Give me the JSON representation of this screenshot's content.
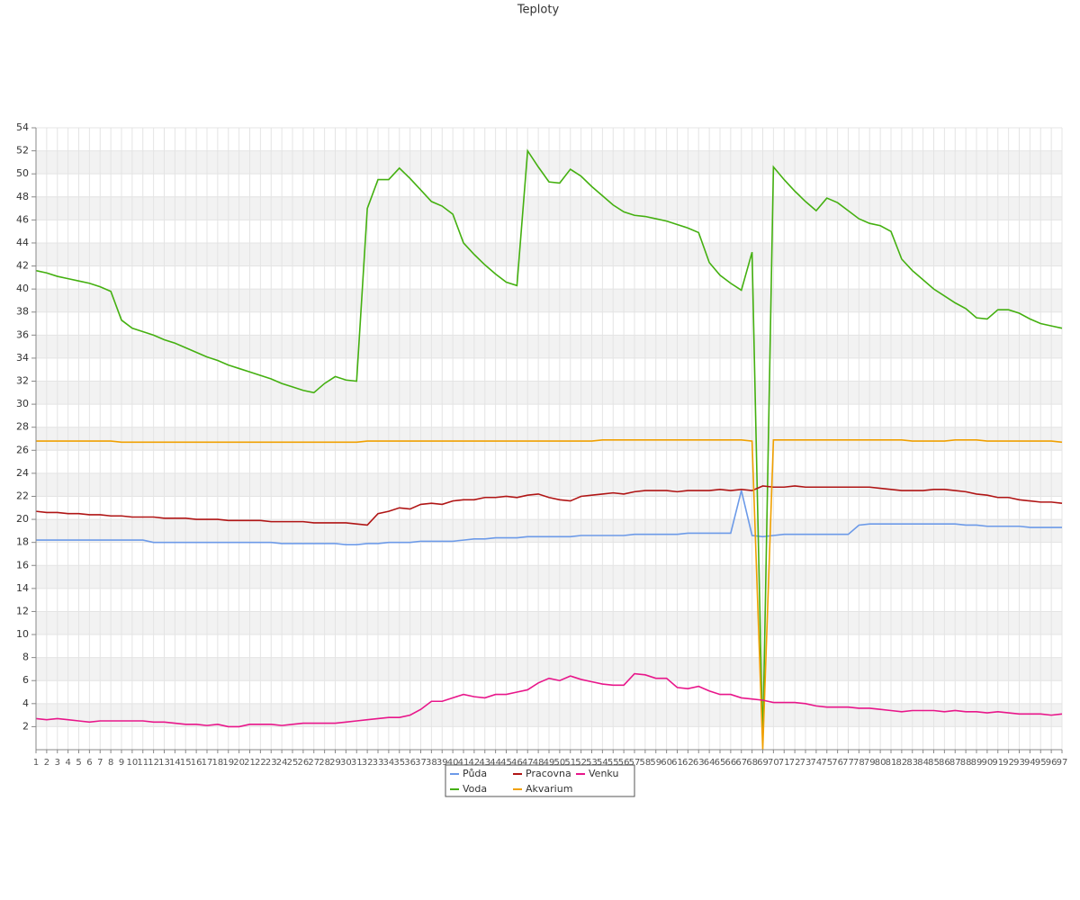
{
  "chart_data": {
    "type": "line",
    "title": "Teploty",
    "x": [
      1,
      2,
      3,
      4,
      5,
      6,
      7,
      8,
      9,
      10,
      11,
      12,
      13,
      14,
      15,
      16,
      17,
      18,
      19,
      20,
      21,
      22,
      23,
      24,
      25,
      26,
      27,
      28,
      29,
      30,
      31,
      32,
      33,
      34,
      35,
      36,
      37,
      38,
      39,
      40,
      41,
      42,
      43,
      44,
      45,
      46,
      47,
      48,
      49,
      50,
      51,
      52,
      53,
      54,
      55,
      56,
      57,
      58,
      59,
      60,
      61,
      62,
      63,
      64,
      65,
      66,
      67,
      68,
      69,
      70,
      71,
      72,
      73,
      74,
      75,
      76,
      77,
      78,
      79,
      80,
      81,
      82,
      83,
      84,
      85,
      86,
      87,
      88,
      89,
      90,
      91,
      92,
      93,
      94,
      95,
      96,
      97
    ],
    "xlim": [
      1,
      97
    ],
    "ylim": [
      0,
      54
    ],
    "yticks": [
      2,
      4,
      6,
      8,
      10,
      12,
      14,
      16,
      18,
      20,
      22,
      24,
      26,
      28,
      30,
      32,
      34,
      36,
      38,
      40,
      42,
      44,
      46,
      48,
      50,
      52,
      54
    ],
    "grid": true,
    "legend": "bottom",
    "series": [
      {
        "name": "Půda",
        "color": "#6c9ae8",
        "values": [
          18.2,
          18.2,
          18.2,
          18.2,
          18.2,
          18.2,
          18.2,
          18.2,
          18.2,
          18.2,
          18.2,
          18.0,
          18.0,
          18.0,
          18.0,
          18.0,
          18.0,
          18.0,
          18.0,
          18.0,
          18.0,
          18.0,
          18.0,
          17.9,
          17.9,
          17.9,
          17.9,
          17.9,
          17.9,
          17.8,
          17.8,
          17.9,
          17.9,
          18.0,
          18.0,
          18.0,
          18.1,
          18.1,
          18.1,
          18.1,
          18.2,
          18.3,
          18.3,
          18.4,
          18.4,
          18.4,
          18.5,
          18.5,
          18.5,
          18.5,
          18.5,
          18.6,
          18.6,
          18.6,
          18.6,
          18.6,
          18.7,
          18.7,
          18.7,
          18.7,
          18.7,
          18.8,
          18.8,
          18.8,
          18.8,
          18.8,
          22.5,
          18.6,
          18.5,
          18.6,
          18.7,
          18.7,
          18.7,
          18.7,
          18.7,
          18.7,
          18.7,
          19.5,
          19.6,
          19.6,
          19.6,
          19.6,
          19.6,
          19.6,
          19.6,
          19.6,
          19.6,
          19.5,
          19.5,
          19.4,
          19.4,
          19.4,
          19.4,
          19.3,
          19.3,
          19.3,
          19.3
        ]
      },
      {
        "name": "Voda",
        "color": "#44b010",
        "values": [
          41.6,
          41.4,
          41.1,
          40.9,
          40.7,
          40.5,
          40.2,
          39.8,
          37.3,
          36.6,
          36.3,
          36.0,
          35.6,
          35.3,
          34.9,
          34.5,
          34.1,
          33.8,
          33.4,
          33.1,
          32.8,
          32.5,
          32.2,
          31.8,
          31.5,
          31.2,
          31.0,
          31.8,
          32.4,
          32.1,
          32.0,
          47.0,
          49.5,
          49.5,
          50.5,
          49.6,
          48.6,
          47.6,
          47.2,
          46.5,
          44.0,
          43.0,
          42.1,
          41.3,
          40.6,
          40.3,
          52.0,
          50.6,
          49.3,
          49.2,
          50.4,
          49.8,
          48.9,
          48.1,
          47.3,
          46.7,
          46.4,
          46.3,
          46.1,
          45.9,
          45.6,
          45.3,
          44.9,
          42.3,
          41.2,
          40.5,
          39.9,
          43.2,
          0.5,
          50.6,
          49.5,
          48.5,
          47.6,
          46.8,
          47.9,
          47.5,
          46.8,
          46.1,
          45.7,
          45.5,
          45.0,
          42.6,
          41.6,
          40.8,
          40.0,
          39.4,
          38.8,
          38.3,
          37.5,
          37.4,
          38.2,
          38.2,
          37.9,
          37.4,
          37.0,
          36.8,
          36.6
        ]
      },
      {
        "name": "Pracovna",
        "color": "#b01515",
        "values": [
          20.7,
          20.6,
          20.6,
          20.5,
          20.5,
          20.4,
          20.4,
          20.3,
          20.3,
          20.2,
          20.2,
          20.2,
          20.1,
          20.1,
          20.1,
          20.0,
          20.0,
          20.0,
          19.9,
          19.9,
          19.9,
          19.9,
          19.8,
          19.8,
          19.8,
          19.8,
          19.7,
          19.7,
          19.7,
          19.7,
          19.6,
          19.5,
          20.5,
          20.7,
          21.0,
          20.9,
          21.3,
          21.4,
          21.3,
          21.6,
          21.7,
          21.7,
          21.9,
          21.9,
          22.0,
          21.9,
          22.1,
          22.2,
          21.9,
          21.7,
          21.6,
          22.0,
          22.1,
          22.2,
          22.3,
          22.2,
          22.4,
          22.5,
          22.5,
          22.5,
          22.4,
          22.5,
          22.5,
          22.5,
          22.6,
          22.5,
          22.6,
          22.5,
          22.9,
          22.8,
          22.8,
          22.9,
          22.8,
          22.8,
          22.8,
          22.8,
          22.8,
          22.8,
          22.8,
          22.7,
          22.6,
          22.5,
          22.5,
          22.5,
          22.6,
          22.6,
          22.5,
          22.4,
          22.2,
          22.1,
          21.9,
          21.9,
          21.7,
          21.6,
          21.5,
          21.5,
          21.4
        ]
      },
      {
        "name": "Akvarium",
        "color": "#f0a000",
        "values": [
          26.8,
          26.8,
          26.8,
          26.8,
          26.8,
          26.8,
          26.8,
          26.8,
          26.7,
          26.7,
          26.7,
          26.7,
          26.7,
          26.7,
          26.7,
          26.7,
          26.7,
          26.7,
          26.7,
          26.7,
          26.7,
          26.7,
          26.7,
          26.7,
          26.7,
          26.7,
          26.7,
          26.7,
          26.7,
          26.7,
          26.7,
          26.8,
          26.8,
          26.8,
          26.8,
          26.8,
          26.8,
          26.8,
          26.8,
          26.8,
          26.8,
          26.8,
          26.8,
          26.8,
          26.8,
          26.8,
          26.8,
          26.8,
          26.8,
          26.8,
          26.8,
          26.8,
          26.8,
          26.9,
          26.9,
          26.9,
          26.9,
          26.9,
          26.9,
          26.9,
          26.9,
          26.9,
          26.9,
          26.9,
          26.9,
          26.9,
          26.9,
          26.8,
          0,
          26.9,
          26.9,
          26.9,
          26.9,
          26.9,
          26.9,
          26.9,
          26.9,
          26.9,
          26.9,
          26.9,
          26.9,
          26.9,
          26.8,
          26.8,
          26.8,
          26.8,
          26.9,
          26.9,
          26.9,
          26.8,
          26.8,
          26.8,
          26.8,
          26.8,
          26.8,
          26.8,
          26.7
        ]
      },
      {
        "name": "Venku",
        "color": "#e8168a",
        "values": [
          2.7,
          2.6,
          2.7,
          2.6,
          2.5,
          2.4,
          2.5,
          2.5,
          2.5,
          2.5,
          2.5,
          2.4,
          2.4,
          2.3,
          2.2,
          2.2,
          2.1,
          2.2,
          2.0,
          2.0,
          2.2,
          2.2,
          2.2,
          2.1,
          2.2,
          2.3,
          2.3,
          2.3,
          2.3,
          2.4,
          2.5,
          2.6,
          2.7,
          2.8,
          2.8,
          3.0,
          3.5,
          4.2,
          4.2,
          4.5,
          4.8,
          4.6,
          4.5,
          4.8,
          4.8,
          5.0,
          5.2,
          5.8,
          6.2,
          6.0,
          6.4,
          6.1,
          5.9,
          5.7,
          5.6,
          5.6,
          6.6,
          6.5,
          6.2,
          6.2,
          5.4,
          5.3,
          5.5,
          5.1,
          4.8,
          4.8,
          4.5,
          4.4,
          4.3,
          4.1,
          4.1,
          4.1,
          4.0,
          3.8,
          3.7,
          3.7,
          3.7,
          3.6,
          3.6,
          3.5,
          3.4,
          3.3,
          3.4,
          3.4,
          3.4,
          3.3,
          3.4,
          3.3,
          3.3,
          3.2,
          3.3,
          3.2,
          3.1,
          3.1,
          3.1,
          3.0,
          3.1
        ]
      }
    ]
  }
}
